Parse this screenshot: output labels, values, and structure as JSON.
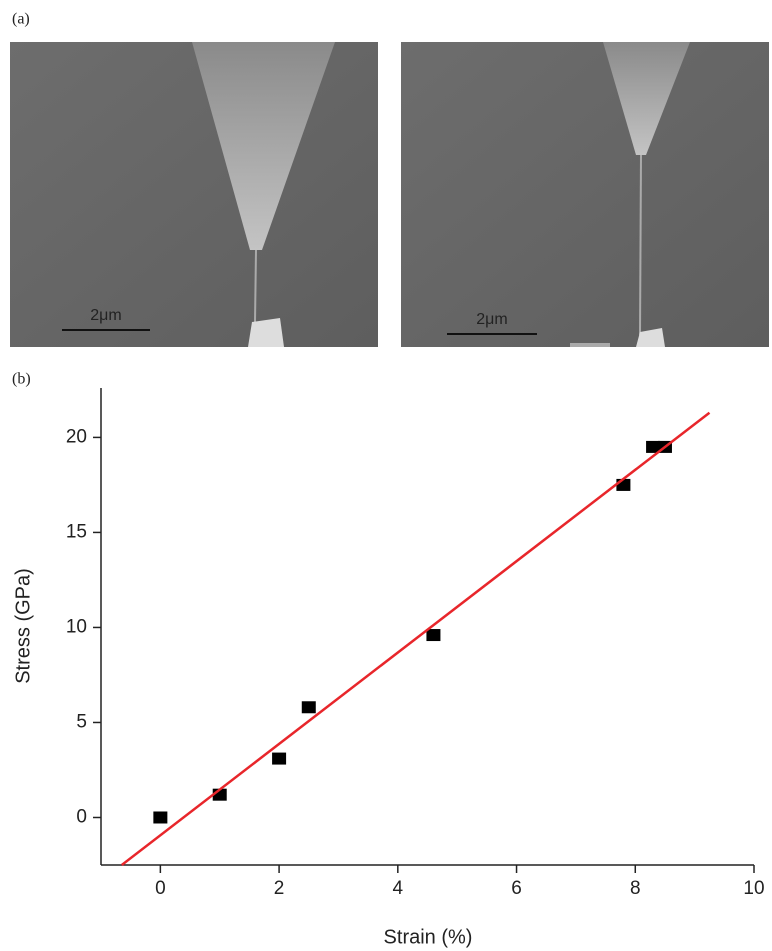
{
  "figure": {
    "panel_a_label": "(a)",
    "panel_b_label": "(b)",
    "scale_bars": [
      "2μm",
      "2μm"
    ]
  },
  "chart_data": {
    "type": "scatter",
    "xlabel": "Strain (%)",
    "ylabel": "Stress (GPa)",
    "xlim": [
      -1,
      10
    ],
    "ylim": [
      -2.5,
      22.6
    ],
    "xticks": [
      0,
      2,
      4,
      6,
      8,
      10
    ],
    "yticks": [
      0,
      5,
      10,
      15,
      20
    ],
    "series": [
      {
        "type": "scatter",
        "color": "#000000",
        "marker": "square",
        "x": [
          0,
          1,
          2,
          2.5,
          4.6,
          7.8,
          8.3,
          8.5
        ],
        "values": [
          0,
          1.2,
          3.1,
          5.8,
          9.6,
          17.5,
          19.5,
          19.5
        ]
      },
      {
        "type": "line",
        "color": "#e8262b",
        "x": [
          -0.65,
          9.25
        ],
        "values": [
          -2.5,
          21.3
        ]
      }
    ]
  }
}
